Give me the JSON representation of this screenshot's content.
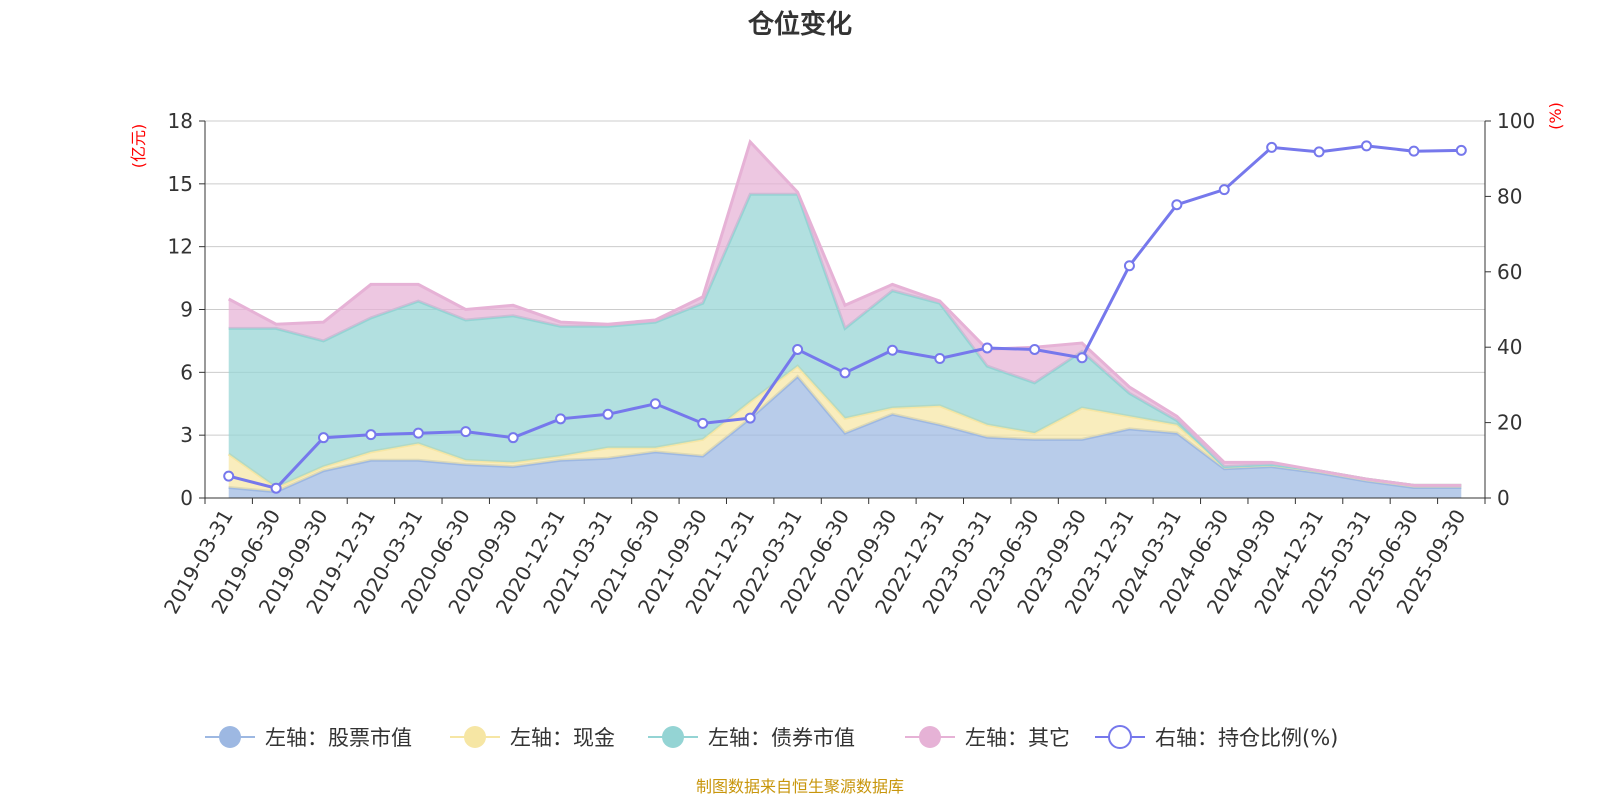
{
  "chart_data": {
    "type": "area",
    "title": "仓位变化",
    "left_axis_unit": "(亿元)",
    "right_axis_unit": "(%)",
    "left_ylim": [
      0,
      18
    ],
    "left_ticks": [
      "0",
      "3",
      "6",
      "9",
      "12",
      "15",
      "18"
    ],
    "right_ylim": [
      0,
      100
    ],
    "right_ticks": [
      "0",
      "20",
      "40",
      "60",
      "80",
      "100"
    ],
    "categories": [
      "2019-03-31",
      "2019-06-30",
      "2019-09-30",
      "2019-12-31",
      "2020-03-31",
      "2020-06-30",
      "2020-09-30",
      "2020-12-31",
      "2021-03-31",
      "2021-06-30",
      "2021-09-30",
      "2021-12-31",
      "2022-03-31",
      "2022-06-30",
      "2022-09-30",
      "2022-12-31",
      "2023-03-31",
      "2023-06-30",
      "2023-09-30",
      "2023-12-31",
      "2024-03-31",
      "2024-06-30",
      "2024-09-30",
      "2024-12-31",
      "2025-03-31",
      "2025-06-30",
      "2025-09-30"
    ],
    "stacked_series": [
      {
        "name": "左轴：股票市值",
        "color": "#9db8e2",
        "values": [
          0.5,
          0.3,
          1.3,
          1.8,
          1.8,
          1.6,
          1.5,
          1.8,
          1.9,
          2.2,
          2.0,
          3.8,
          5.8,
          3.1,
          4.0,
          3.5,
          2.9,
          2.8,
          2.8,
          3.3,
          3.1,
          1.4,
          1.5,
          1.2,
          0.8,
          0.5,
          0.5
        ]
      },
      {
        "name": "左轴：现金",
        "color": "#f6e6a4",
        "values": [
          1.6,
          0.2,
          0.2,
          0.4,
          0.8,
          0.2,
          0.2,
          0.2,
          0.5,
          0.2,
          0.8,
          0.8,
          0.5,
          0.7,
          0.3,
          0.9,
          0.6,
          0.3,
          1.5,
          0.6,
          0.4,
          0.1,
          0.1,
          0.1,
          0.1,
          0.1,
          0.1
        ]
      },
      {
        "name": "左轴：债券市值",
        "color": "#94d4d4",
        "values": [
          6.0,
          7.6,
          6.0,
          6.4,
          6.8,
          6.7,
          7.0,
          6.2,
          5.8,
          6.0,
          6.5,
          9.9,
          8.2,
          4.3,
          5.6,
          4.9,
          2.8,
          2.4,
          2.7,
          1.1,
          0.2,
          0.0,
          0.0,
          0.0,
          0.0,
          0.0,
          0.0
        ]
      },
      {
        "name": "左轴：其它",
        "color": "#e6b2d6",
        "values": [
          1.4,
          0.2,
          0.9,
          1.6,
          0.8,
          0.5,
          0.5,
          0.2,
          0.1,
          0.1,
          0.3,
          2.5,
          0.1,
          1.1,
          0.3,
          0.1,
          0.8,
          1.7,
          0.4,
          0.3,
          0.2,
          0.2,
          0.1,
          0.0,
          0.0,
          0.0,
          0.0
        ]
      }
    ],
    "line_series": {
      "name": "右轴：持仓比例(%)",
      "color": "#7678ec",
      "values": [
        5.8,
        2.6,
        16.0,
        16.8,
        17.2,
        17.6,
        16.0,
        21.0,
        22.2,
        25.0,
        19.8,
        21.2,
        39.4,
        33.2,
        39.2,
        37.0,
        39.8,
        39.4,
        37.2,
        61.6,
        77.8,
        81.8,
        93.0,
        91.8,
        93.4,
        92.0,
        92.2
      ]
    },
    "legend": [
      {
        "label": "左轴：股票市值",
        "color": "#9db8e2",
        "marker": "filled"
      },
      {
        "label": "左轴：现金",
        "color": "#f6e6a4",
        "marker": "filled"
      },
      {
        "label": "左轴：债券市值",
        "color": "#94d4d4",
        "marker": "filled"
      },
      {
        "label": "左轴：其它",
        "color": "#e6b2d6",
        "marker": "filled"
      },
      {
        "label": "右轴：持仓比例(%)",
        "color": "#7678ec",
        "marker": "hollow"
      }
    ],
    "source": "制图数据来自恒生聚源数据库"
  }
}
